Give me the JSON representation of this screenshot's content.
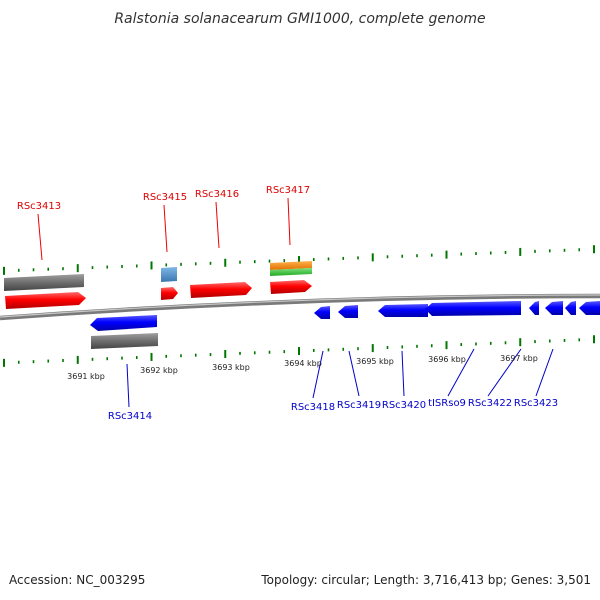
{
  "title": "Ralstonia solanacearum GMI1000, complete genome",
  "footer": {
    "accession": "Accession: NC_003295",
    "summary": "Topology: circular; Length: 3,716,413 bp; Genes: 3,501"
  },
  "colors": {
    "forward_gene": "#ff0000",
    "reverse_gene": "#0000ff",
    "pseudo_block": "#6e6e6e",
    "misc_feature": "#4a8ec8",
    "rna_feature": "#ff8800",
    "repeat_feature": "#33cc33",
    "tick": "#007700",
    "backbone": "#888888"
  },
  "forward_labels": [
    "RSc3413",
    "RSc3415",
    "RSc3416",
    "RSc3417"
  ],
  "reverse_labels": [
    "RSc3414",
    "RSc3418",
    "RSc3419",
    "RSc3420",
    "tISRso9",
    "RSc3422",
    "RSc3423"
  ],
  "tick_labels": [
    "3691 kbp",
    "3692 kbp",
    "3693 kbp",
    "3694 kbp",
    "3695 kbp",
    "3696 kbp",
    "3697 kbp"
  ]
}
